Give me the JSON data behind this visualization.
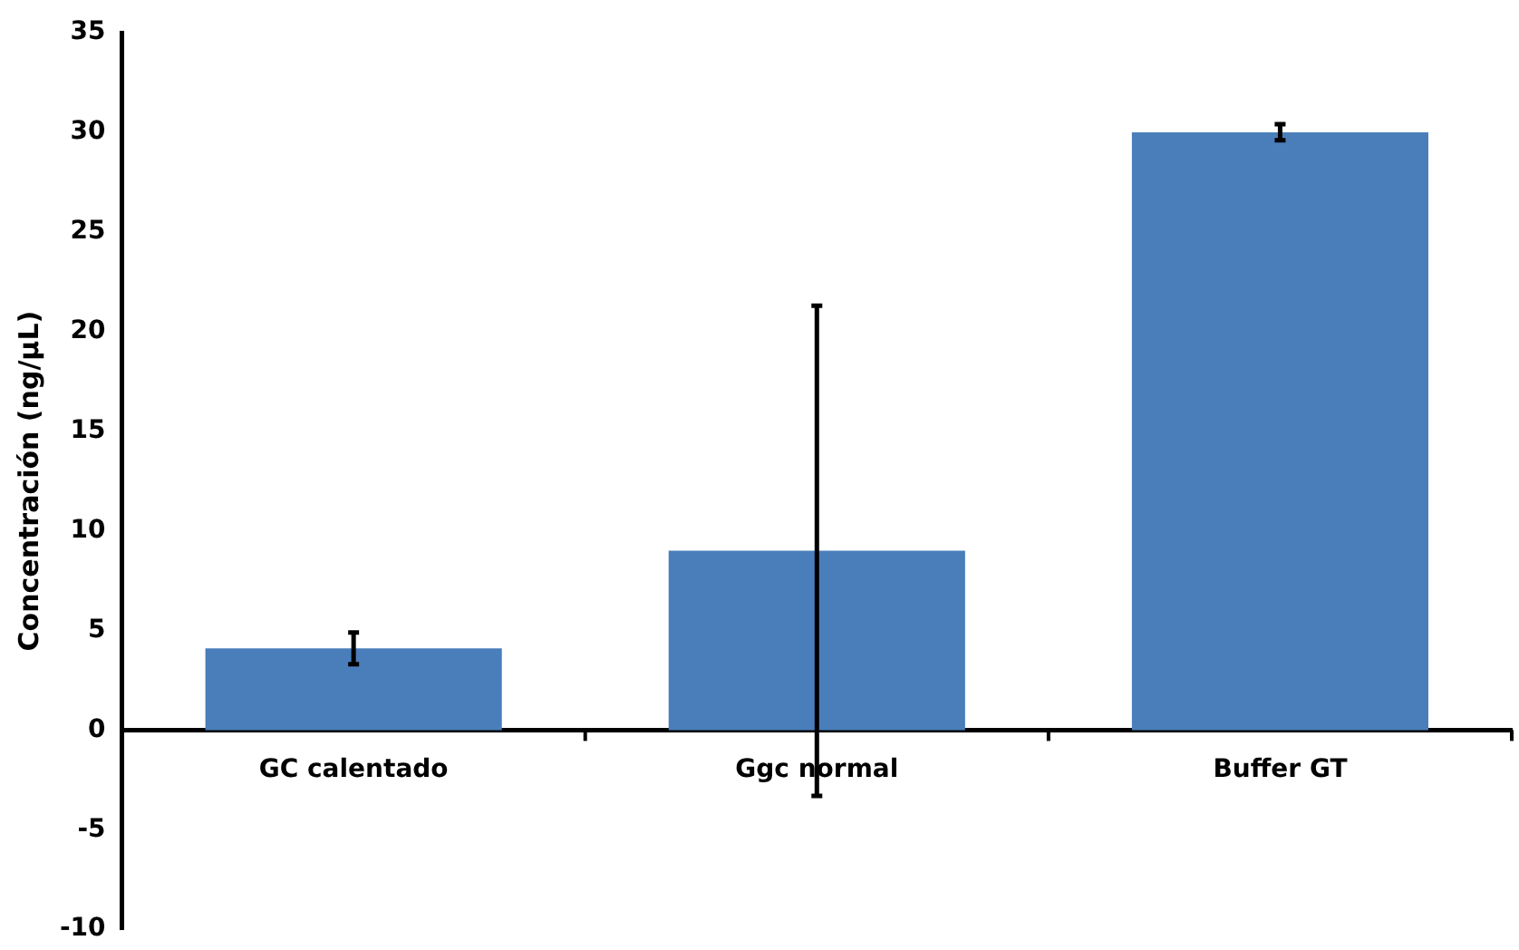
{
  "chart_data": {
    "type": "bar",
    "ylabel": "Concentración (ng/µL)",
    "categories": [
      "GC calentado",
      "Ggc normal",
      "Buffer GT"
    ],
    "values": [
      4.1,
      9.0,
      30.0
    ],
    "color": "#4a7ebb",
    "errors": [
      0.8,
      12.3,
      0.4
    ],
    "ylim": [
      -10,
      35
    ],
    "yticks": [
      -10,
      -5,
      0,
      5,
      10,
      15,
      20,
      25,
      30,
      35
    ],
    "grid": false,
    "legend": false
  }
}
